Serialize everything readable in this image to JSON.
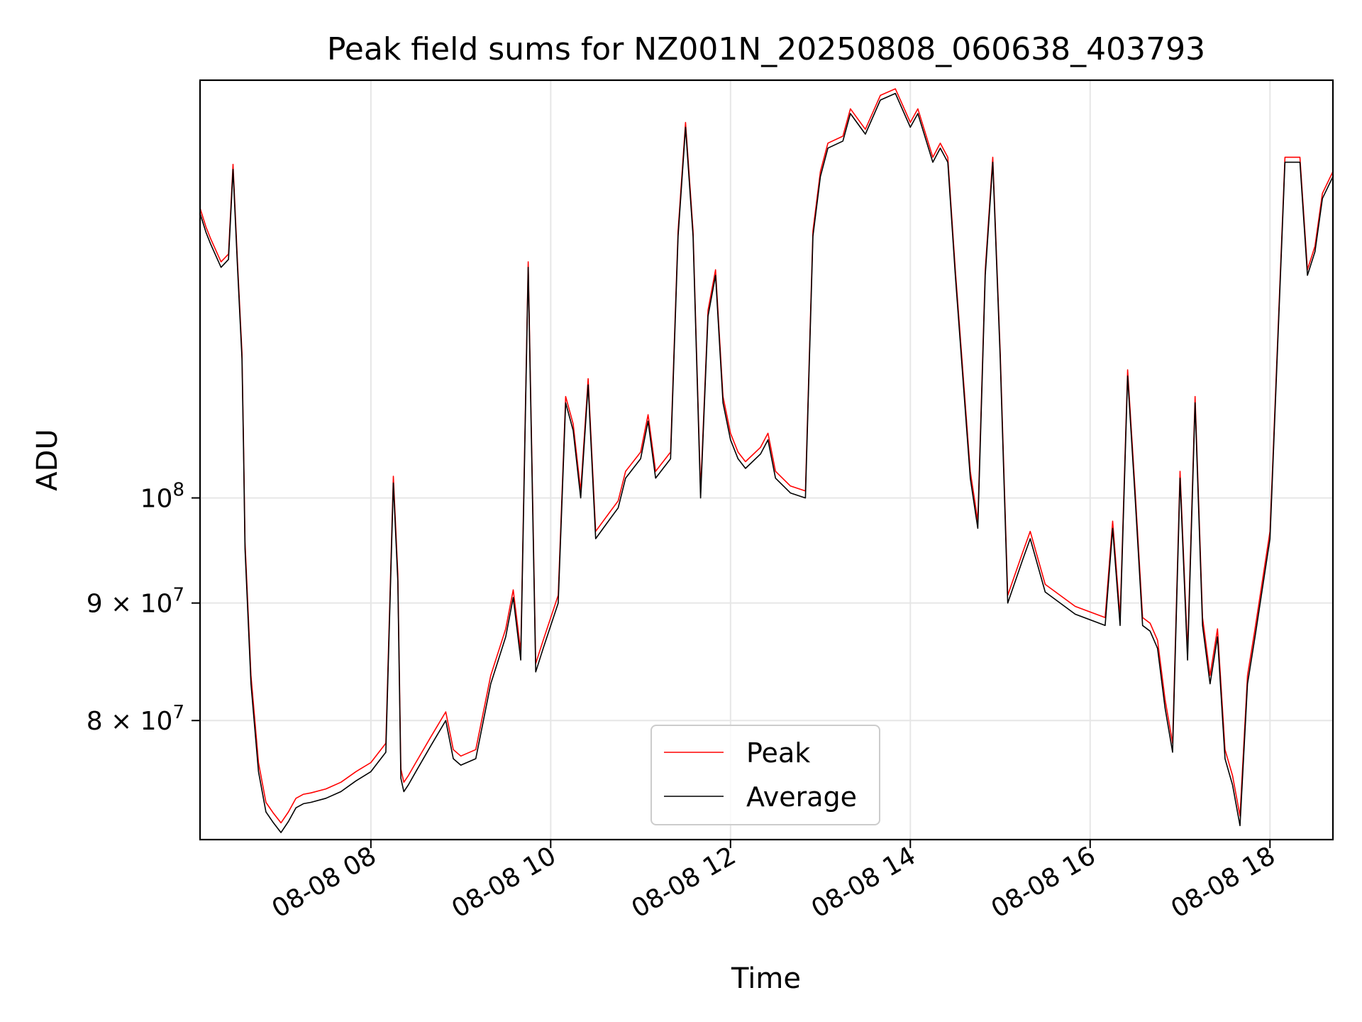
{
  "chart_data": {
    "type": "line",
    "title": "Peak field sums for NZ001N_20250808_060638_403793",
    "xlabel": "Time",
    "ylabel": "ADU",
    "y_scale": "log",
    "ylim": [
      71000000,
      152000000
    ],
    "xlim": [
      "2025-08-08 06:06",
      "2025-08-08 18:42"
    ],
    "grid": true,
    "legend_position": "lower-center",
    "x_ticks": [
      {
        "t": "2025-08-08 08:00",
        "label": "08-08 08"
      },
      {
        "t": "2025-08-08 10:00",
        "label": "08-08 10"
      },
      {
        "t": "2025-08-08 12:00",
        "label": "08-08 12"
      },
      {
        "t": "2025-08-08 14:00",
        "label": "08-08 14"
      },
      {
        "t": "2025-08-08 16:00",
        "label": "08-08 16"
      },
      {
        "t": "2025-08-08 18:00",
        "label": "08-08 18"
      }
    ],
    "y_ticks": [
      {
        "value": 80000000,
        "label": "8 × 10",
        "exp": "7"
      },
      {
        "value": 90000000,
        "label": "9 × 10",
        "exp": "7"
      },
      {
        "value": 100000000,
        "label": "10",
        "exp": "8"
      }
    ],
    "series": [
      {
        "name": "Peak",
        "color": "#ff0000",
        "offset": 0.7
      },
      {
        "name": "Average",
        "color": "#000000",
        "offset": 0
      }
    ],
    "x": [
      "2025-08-08 06:06",
      "2025-08-08 06:10",
      "2025-08-08 06:13",
      "2025-08-08 06:20",
      "2025-08-08 06:25",
      "2025-08-08 06:28",
      "2025-08-08 06:31",
      "2025-08-08 06:34",
      "2025-08-08 06:35",
      "2025-08-08 06:36",
      "2025-08-08 06:40",
      "2025-08-08 06:45",
      "2025-08-08 06:50",
      "2025-08-08 06:55",
      "2025-08-08 07:00",
      "2025-08-08 07:05",
      "2025-08-08 07:10",
      "2025-08-08 07:15",
      "2025-08-08 07:20",
      "2025-08-08 07:30",
      "2025-08-08 07:40",
      "2025-08-08 07:50",
      "2025-08-08 08:00",
      "2025-08-08 08:10",
      "2025-08-08 08:15",
      "2025-08-08 08:18",
      "2025-08-08 08:20",
      "2025-08-08 08:22",
      "2025-08-08 08:25",
      "2025-08-08 08:30",
      "2025-08-08 08:40",
      "2025-08-08 08:50",
      "2025-08-08 08:55",
      "2025-08-08 09:00",
      "2025-08-08 09:10",
      "2025-08-08 09:20",
      "2025-08-08 09:30",
      "2025-08-08 09:35",
      "2025-08-08 09:40",
      "2025-08-08 09:45",
      "2025-08-08 09:50",
      "2025-08-08 09:55",
      "2025-08-08 10:05",
      "2025-08-08 10:10",
      "2025-08-08 10:15",
      "2025-08-08 10:20",
      "2025-08-08 10:25",
      "2025-08-08 10:30",
      "2025-08-08 10:40",
      "2025-08-08 10:45",
      "2025-08-08 10:50",
      "2025-08-08 11:00",
      "2025-08-08 11:05",
      "2025-08-08 11:10",
      "2025-08-08 11:20",
      "2025-08-08 11:25",
      "2025-08-08 11:30",
      "2025-08-08 11:35",
      "2025-08-08 11:40",
      "2025-08-08 11:45",
      "2025-08-08 11:50",
      "2025-08-08 11:55",
      "2025-08-08 12:00",
      "2025-08-08 12:05",
      "2025-08-08 12:10",
      "2025-08-08 12:20",
      "2025-08-08 12:25",
      "2025-08-08 12:30",
      "2025-08-08 12:40",
      "2025-08-08 12:50",
      "2025-08-08 12:55",
      "2025-08-08 13:00",
      "2025-08-08 13:05",
      "2025-08-08 13:15",
      "2025-08-08 13:20",
      "2025-08-08 13:30",
      "2025-08-08 13:40",
      "2025-08-08 13:50",
      "2025-08-08 14:00",
      "2025-08-08 14:05",
      "2025-08-08 14:15",
      "2025-08-08 14:20",
      "2025-08-08 14:25",
      "2025-08-08 14:30",
      "2025-08-08 14:40",
      "2025-08-08 14:45",
      "2025-08-08 14:50",
      "2025-08-08 14:55",
      "2025-08-08 15:00",
      "2025-08-08 15:05",
      "2025-08-08 15:15",
      "2025-08-08 15:20",
      "2025-08-08 15:30",
      "2025-08-08 15:50",
      "2025-08-08 16:10",
      "2025-08-08 16:15",
      "2025-08-08 16:20",
      "2025-08-08 16:25",
      "2025-08-08 16:30",
      "2025-08-08 16:35",
      "2025-08-08 16:40",
      "2025-08-08 16:45",
      "2025-08-08 16:50",
      "2025-08-08 16:55",
      "2025-08-08 17:00",
      "2025-08-08 17:05",
      "2025-08-08 17:10",
      "2025-08-08 17:15",
      "2025-08-08 17:20",
      "2025-08-08 17:25",
      "2025-08-08 17:30",
      "2025-08-08 17:35",
      "2025-08-08 17:40",
      "2025-08-08 17:45",
      "2025-08-08 17:50",
      "2025-08-08 18:00",
      "2025-08-08 18:10",
      "2025-08-08 18:20",
      "2025-08-08 18:25",
      "2025-08-08 18:30",
      "2025-08-08 18:35",
      "2025-08-08 18:42"
    ],
    "y_millions": [
      133.0,
      130.5,
      129.0,
      126.0,
      127.0,
      139.0,
      126.0,
      115.0,
      105.0,
      95.0,
      83.0,
      76.0,
      73.0,
      72.2,
      71.5,
      72.3,
      73.3,
      73.6,
      73.7,
      74.0,
      74.5,
      75.3,
      76.0,
      77.5,
      101.5,
      92.0,
      75.5,
      74.5,
      75.0,
      76.0,
      78.0,
      80.0,
      77.0,
      76.5,
      77.0,
      83.0,
      87.0,
      90.5,
      85.0,
      126.0,
      84.0,
      86.0,
      90.0,
      110.0,
      107.0,
      100.0,
      112.0,
      96.0,
      98.0,
      99.0,
      102.0,
      104.0,
      108.0,
      102.0,
      104.0,
      130.0,
      145.0,
      130.0,
      100.0,
      120.0,
      125.0,
      110.0,
      106.0,
      104.0,
      103.0,
      104.5,
      106.0,
      102.0,
      100.5,
      100.0,
      130.0,
      138.0,
      142.0,
      143.0,
      147.0,
      144.0,
      149.0,
      150.0,
      145.0,
      147.0,
      140.0,
      142.0,
      140.0,
      125.0,
      102.0,
      97.0,
      125.0,
      140.0,
      115.0,
      90.0,
      94.0,
      96.0,
      91.0,
      89.0,
      88.0,
      97.0,
      88.0,
      113.0,
      100.0,
      88.0,
      87.5,
      86.0,
      81.0,
      77.5,
      102.0,
      85.0,
      110.0,
      88.0,
      83.0,
      87.0,
      77.0,
      75.0,
      72.0,
      83.0,
      87.0,
      96.0,
      140.0,
      140.0,
      125.0,
      128.0,
      135.0,
      138.0
    ]
  }
}
